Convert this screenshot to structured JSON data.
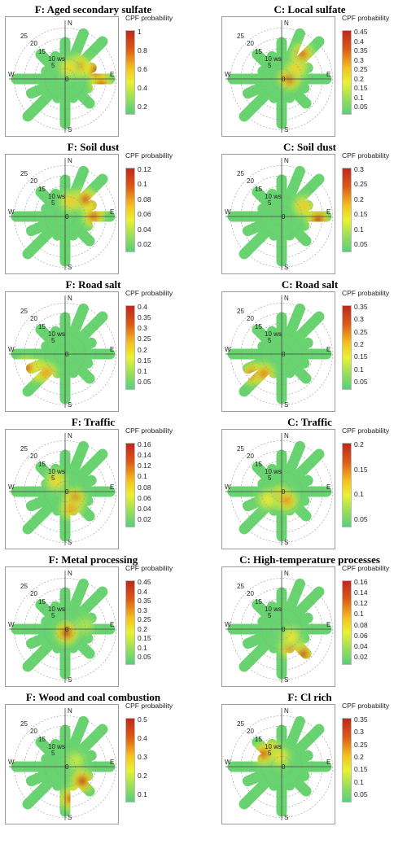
{
  "chart_data": [
    {
      "type": "polar-heatmap",
      "title": "F: Aged secondary sulfate",
      "colorbar": {
        "title": "CPF probability",
        "ticks": [
          "1",
          "0.8",
          "0.6",
          "0.4",
          "0.2"
        ]
      },
      "radial_ticks": [
        "25",
        "20",
        "15",
        "10 ws",
        "5",
        "0"
      ],
      "directions": [
        "N",
        "E",
        "S",
        "W"
      ],
      "hotspots": [
        {
          "dir_deg": 45,
          "ws": 9,
          "p": 0.9
        },
        {
          "dir_deg": 75,
          "ws": 16,
          "p": 1.0
        },
        {
          "dir_deg": 100,
          "ws": 18,
          "p": 0.95
        },
        {
          "dir_deg": 20,
          "ws": 6,
          "p": 0.6
        }
      ]
    },
    {
      "type": "polar-heatmap",
      "title": "C: Local sulfate",
      "colorbar": {
        "title": "CPF probability",
        "ticks": [
          "0.45",
          "0.4",
          "0.35",
          "0.3",
          "0.25",
          "0.2",
          "0.15",
          "0.1",
          "0.05"
        ]
      },
      "radial_ticks": [
        "25",
        "20",
        "15",
        "10 ws",
        "5",
        "0"
      ],
      "directions": [
        "N",
        "E",
        "S",
        "W"
      ],
      "hotspots": [
        {
          "dir_deg": 85,
          "ws": 4,
          "p": 0.45
        },
        {
          "dir_deg": 40,
          "ws": 16,
          "p": 0.38
        },
        {
          "dir_deg": 55,
          "ws": 9,
          "p": 0.28
        }
      ]
    },
    {
      "type": "polar-heatmap",
      "title": "F: Soil dust",
      "colorbar": {
        "title": "CPF probability",
        "ticks": [
          "0.12",
          "0.1",
          "0.08",
          "0.06",
          "0.04",
          "0.02"
        ]
      },
      "radial_ticks": [
        "25",
        "20",
        "15",
        "10 ws",
        "5",
        "0"
      ],
      "directions": [
        "N",
        "E",
        "S",
        "W"
      ],
      "hotspots": [
        {
          "dir_deg": 70,
          "ws": 16,
          "p": 0.12
        },
        {
          "dir_deg": 50,
          "ws": 13,
          "p": 0.11
        },
        {
          "dir_deg": 90,
          "ws": 14,
          "p": 0.1
        },
        {
          "dir_deg": 20,
          "ws": 8,
          "p": 0.08
        }
      ]
    },
    {
      "type": "polar-heatmap",
      "title": "C: Soil dust",
      "colorbar": {
        "title": "CPF probability",
        "ticks": [
          "0.3",
          "0.25",
          "0.2",
          "0.15",
          "0.1",
          "0.05"
        ]
      },
      "radial_ticks": [
        "25",
        "20",
        "15",
        "10 ws",
        "5",
        "0"
      ],
      "directions": [
        "N",
        "E",
        "S",
        "W"
      ],
      "hotspots": [
        {
          "dir_deg": 95,
          "ws": 18,
          "p": 0.3
        },
        {
          "dir_deg": 65,
          "ws": 12,
          "p": 0.2
        }
      ]
    },
    {
      "type": "polar-heatmap",
      "title": "F: Road salt",
      "colorbar": {
        "title": "CPF probability",
        "ticks": [
          "0.4",
          "0.35",
          "0.3",
          "0.25",
          "0.2",
          "0.15",
          "0.1",
          "0.05"
        ]
      },
      "radial_ticks": [
        "25",
        "20",
        "15",
        "10 ws",
        "5",
        "0"
      ],
      "directions": [
        "N",
        "E",
        "S",
        "W"
      ],
      "hotspots": [
        {
          "dir_deg": 240,
          "ws": 16,
          "p": 0.4
        },
        {
          "dir_deg": 225,
          "ws": 13,
          "p": 0.3
        },
        {
          "dir_deg": 250,
          "ws": 20,
          "p": 0.35
        }
      ]
    },
    {
      "type": "polar-heatmap",
      "title": "C: Road salt",
      "colorbar": {
        "title": "CPF probability",
        "ticks": [
          "0.35",
          "0.3",
          "0.25",
          "0.2",
          "0.15",
          "0.1",
          "0.05"
        ]
      },
      "radial_ticks": [
        "25",
        "20",
        "15",
        "10 ws",
        "5",
        "0"
      ],
      "directions": [
        "N",
        "E",
        "S",
        "W"
      ],
      "hotspots": [
        {
          "dir_deg": 235,
          "ws": 17,
          "p": 0.35
        },
        {
          "dir_deg": 222,
          "ws": 13,
          "p": 0.28
        }
      ]
    },
    {
      "type": "polar-heatmap",
      "title": "F: Traffic",
      "colorbar": {
        "title": "CPF probability",
        "ticks": [
          "0.16",
          "0.14",
          "0.12",
          "0.1",
          "0.08",
          "0.06",
          "0.04",
          "0.02"
        ]
      },
      "radial_ticks": [
        "25",
        "20",
        "15",
        "10 ws",
        "5",
        "0"
      ],
      "directions": [
        "N",
        "E",
        "S",
        "W"
      ],
      "hotspots": [
        {
          "dir_deg": 130,
          "ws": 6,
          "p": 0.16
        },
        {
          "dir_deg": 160,
          "ws": 9,
          "p": 0.12
        },
        {
          "dir_deg": 320,
          "ws": 7,
          "p": 0.1
        }
      ]
    },
    {
      "type": "polar-heatmap",
      "title": "C: Traffic",
      "colorbar": {
        "title": "CPF probability",
        "ticks": [
          "0.2",
          "0.15",
          "0.1",
          "0.05"
        ]
      },
      "radial_ticks": [
        "25",
        "20",
        "15",
        "10 ws",
        "5",
        "0"
      ],
      "directions": [
        "N",
        "E",
        "S",
        "W"
      ],
      "hotspots": [
        {
          "dir_deg": 200,
          "ws": 3,
          "p": 0.22
        },
        {
          "dir_deg": 150,
          "ws": 5,
          "p": 0.17
        },
        {
          "dir_deg": 240,
          "ws": 8,
          "p": 0.12
        }
      ]
    },
    {
      "type": "polar-heatmap",
      "title": "F: Metal processing",
      "colorbar": {
        "title": "CPF probability",
        "ticks": [
          "0.45",
          "0.4",
          "0.35",
          "0.3",
          "0.25",
          "0.2",
          "0.15",
          "0.1",
          "0.05"
        ]
      },
      "radial_ticks": [
        "25",
        "20",
        "15",
        "10 ws",
        "5",
        "0"
      ],
      "directions": [
        "N",
        "E",
        "S",
        "W"
      ],
      "hotspots": [
        {
          "dir_deg": 160,
          "ws": 2,
          "p": 0.45
        },
        {
          "dir_deg": 80,
          "ws": 10,
          "p": 0.15
        }
      ]
    },
    {
      "type": "polar-heatmap",
      "title": "C: High-temperature processes",
      "colorbar": {
        "title": "CPF probability",
        "ticks": [
          "0.16",
          "0.14",
          "0.12",
          "0.1",
          "0.08",
          "0.06",
          "0.04",
          "0.02"
        ]
      },
      "radial_ticks": [
        "25",
        "20",
        "15",
        "10 ws",
        "5",
        "0"
      ],
      "directions": [
        "N",
        "E",
        "S",
        "W"
      ],
      "hotspots": [
        {
          "dir_deg": 140,
          "ws": 16,
          "p": 0.16
        },
        {
          "dir_deg": 155,
          "ws": 10,
          "p": 0.13
        },
        {
          "dir_deg": 130,
          "ws": 6,
          "p": 0.09
        }
      ]
    },
    {
      "type": "polar-heatmap",
      "title": "F: Wood and coal combustion",
      "colorbar": {
        "title": "CPF probability",
        "ticks": [
          "0.5",
          "0.4",
          "0.3",
          "0.2",
          "0.1"
        ]
      },
      "radial_ticks": [
        "25",
        "20",
        "15",
        "10 ws",
        "5",
        "0"
      ],
      "directions": [
        "N",
        "E",
        "S",
        "W"
      ],
      "hotspots": [
        {
          "dir_deg": 130,
          "ws": 11,
          "p": 0.5
        },
        {
          "dir_deg": 170,
          "ws": 16,
          "p": 0.45
        },
        {
          "dir_deg": 60,
          "ws": 6,
          "p": 0.2
        }
      ]
    },
    {
      "type": "polar-heatmap",
      "title": "F: Cl rich",
      "colorbar": {
        "title": "CPF probability",
        "ticks": [
          "0.35",
          "0.3",
          "0.25",
          "0.2",
          "0.15",
          "0.1",
          "0.05"
        ]
      },
      "radial_ticks": [
        "25",
        "20",
        "15",
        "10 ws",
        "5",
        "0"
      ],
      "directions": [
        "N",
        "E",
        "S",
        "W"
      ],
      "hotspots": [
        {
          "dir_deg": 325,
          "ws": 9,
          "p": 0.35
        },
        {
          "dir_deg": 305,
          "ws": 11,
          "p": 0.3
        },
        {
          "dir_deg": 350,
          "ws": 5,
          "p": 0.2
        }
      ]
    }
  ]
}
